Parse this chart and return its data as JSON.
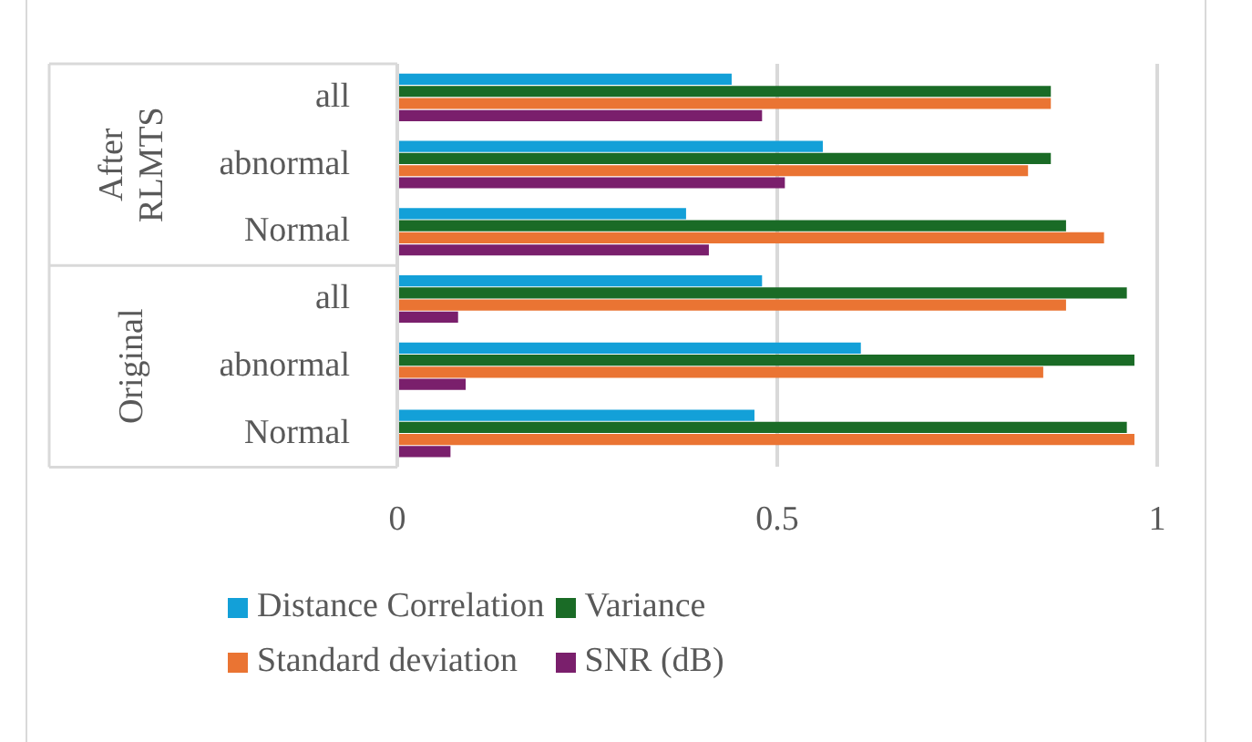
{
  "chart_data": {
    "type": "bar",
    "orientation": "horizontal",
    "categories": [
      "all",
      "abnormal",
      "Normal",
      "all",
      "abnormal",
      "Normal"
    ],
    "annotations": [
      "After RLMTS",
      "Original"
    ],
    "series": [
      {
        "name": "Distance Correlation",
        "color": "#13a0d8",
        "values": [
          0.44,
          0.56,
          0.38,
          0.48,
          0.61,
          0.47
        ]
      },
      {
        "name": "Variance",
        "color": "#1a6b26",
        "values": [
          0.86,
          0.86,
          0.88,
          0.96,
          0.97,
          0.96
        ]
      },
      {
        "name": "Standard deviation",
        "color": "#ea7433",
        "values": [
          0.86,
          0.83,
          0.93,
          0.88,
          0.85,
          0.97
        ]
      },
      {
        "name": "SNR (dB)",
        "color": "#7a1f6c",
        "values": [
          0.48,
          0.51,
          0.41,
          0.08,
          0.09,
          0.07
        ]
      }
    ],
    "xlim": [
      0,
      1
    ],
    "xticks": [
      0,
      0.5,
      1
    ],
    "grid": "x",
    "legend": "bottom"
  }
}
